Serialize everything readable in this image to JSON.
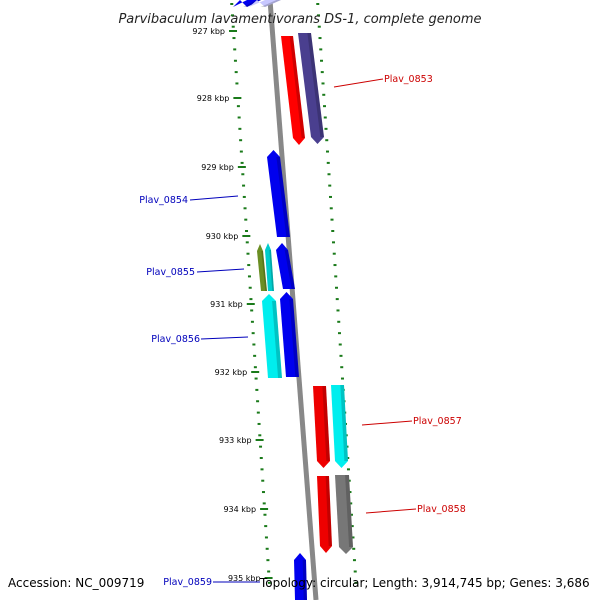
{
  "title": "Parvibaculum lavamentivorans DS-1, complete genome",
  "footer": {
    "accession": "Accession: NC_009719",
    "topology": "Topology: circular; Length: 3,914,745 bp; Genes: 3,686"
  },
  "colors": {
    "tick": "#1a7a1a",
    "backbone": "#888888",
    "label_reverse": "#0000bb",
    "label_forward": "#cc0000"
  },
  "ticks": [
    {
      "label": "927 kbp"
    },
    {
      "label": "928 kbp"
    },
    {
      "label": "929 kbp"
    },
    {
      "label": "930 kbp"
    },
    {
      "label": "931 kbp"
    },
    {
      "label": "932 kbp"
    },
    {
      "label": "933 kbp"
    },
    {
      "label": "934 kbp"
    },
    {
      "label": "935 kbp"
    }
  ],
  "genes": [
    {
      "id": "g-top-a",
      "color": "#0000ee",
      "strand": "-"
    },
    {
      "id": "g-top-b",
      "color": "#c8c8ff",
      "strand": "-"
    },
    {
      "id": "g-0853-red",
      "color": "#ff0000",
      "strand": "+"
    },
    {
      "id": "g-0853",
      "color": "#4a3f8f",
      "strand": "+"
    },
    {
      "id": "g-0854",
      "color": "#0000ee",
      "strand": "-"
    },
    {
      "id": "g-0855-olive",
      "color": "#6b8e23",
      "strand": "-"
    },
    {
      "id": "g-0855-cyan",
      "color": "#00cccc",
      "strand": "-"
    },
    {
      "id": "g-0855",
      "color": "#0000ee",
      "strand": "-"
    },
    {
      "id": "g-0856",
      "color": "#00eeee",
      "strand": "-"
    },
    {
      "id": "g-0856-blue",
      "color": "#0000ee",
      "strand": "-"
    },
    {
      "id": "g-0857-red",
      "color": "#ee0000",
      "strand": "+"
    },
    {
      "id": "g-0857",
      "color": "#00eeee",
      "strand": "+"
    },
    {
      "id": "g-0858-red",
      "color": "#ee0000",
      "strand": "+"
    },
    {
      "id": "g-0858",
      "color": "#777777",
      "strand": "+"
    },
    {
      "id": "g-0859",
      "color": "#0000ee",
      "strand": "-"
    }
  ],
  "gene_labels": [
    {
      "text": "Plav_0853",
      "strand": "+"
    },
    {
      "text": "Plav_0854",
      "strand": "-"
    },
    {
      "text": "Plav_0855",
      "strand": "-"
    },
    {
      "text": "Plav_0856",
      "strand": "-"
    },
    {
      "text": "Plav_0857",
      "strand": "+"
    },
    {
      "text": "Plav_0858",
      "strand": "+"
    },
    {
      "text": "Plav_0859",
      "strand": "-"
    }
  ]
}
